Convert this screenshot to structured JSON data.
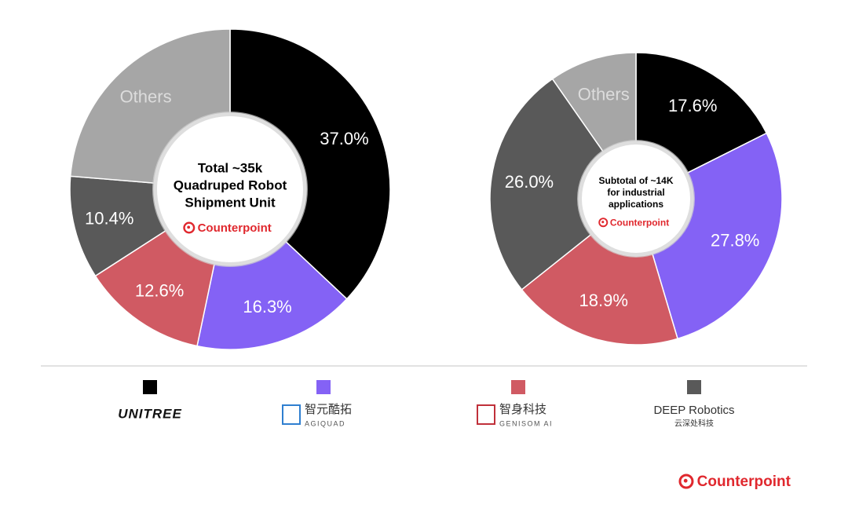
{
  "chart_data": [
    {
      "type": "pie",
      "center_text": [
        "Total ~35k",
        "Quadruped Robot",
        "Shipment Unit"
      ],
      "categories": [
        null,
        null,
        null,
        null,
        "Others"
      ],
      "values": [
        37.0,
        16.3,
        12.6,
        10.4,
        23.7
      ],
      "value_labels": [
        "37.0%",
        "16.3%",
        "12.6%",
        "10.4%",
        null
      ],
      "colors": [
        "#000000",
        "#8462f5",
        "#d05a63",
        "#595959",
        "#a6a6a6"
      ]
    },
    {
      "type": "pie",
      "center_text": [
        "Subtotal of ~14K",
        "for industrial",
        "applications"
      ],
      "categories": [
        null,
        null,
        null,
        null,
        "Others"
      ],
      "values": [
        17.6,
        27.8,
        18.9,
        26.0,
        9.7
      ],
      "value_labels": [
        "17.6%",
        "27.8%",
        "18.9%",
        "26.0%",
        null
      ],
      "colors": [
        "#000000",
        "#8462f5",
        "#d05a63",
        "#595959",
        "#a6a6a6"
      ]
    }
  ],
  "legend": [
    {
      "name": "UNITREE"
    },
    {
      "native": "智元酷拓",
      "name": "AGIQUAD"
    },
    {
      "native": "智身科技",
      "name": "GENISOM AI"
    },
    {
      "name": "DEEP Robotics",
      "native": "云深处科技"
    }
  ],
  "brand": "Counterpoint"
}
